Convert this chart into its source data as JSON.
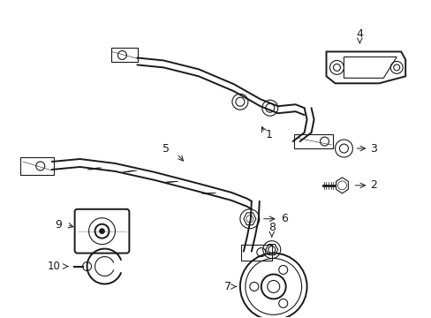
{
  "bg_color": "#ffffff",
  "line_color": "#1a1a1a",
  "fig_width": 4.89,
  "fig_height": 3.6,
  "dpi": 100,
  "lw_main": 1.4,
  "lw_thin": 0.8,
  "label_fontsize": 9
}
